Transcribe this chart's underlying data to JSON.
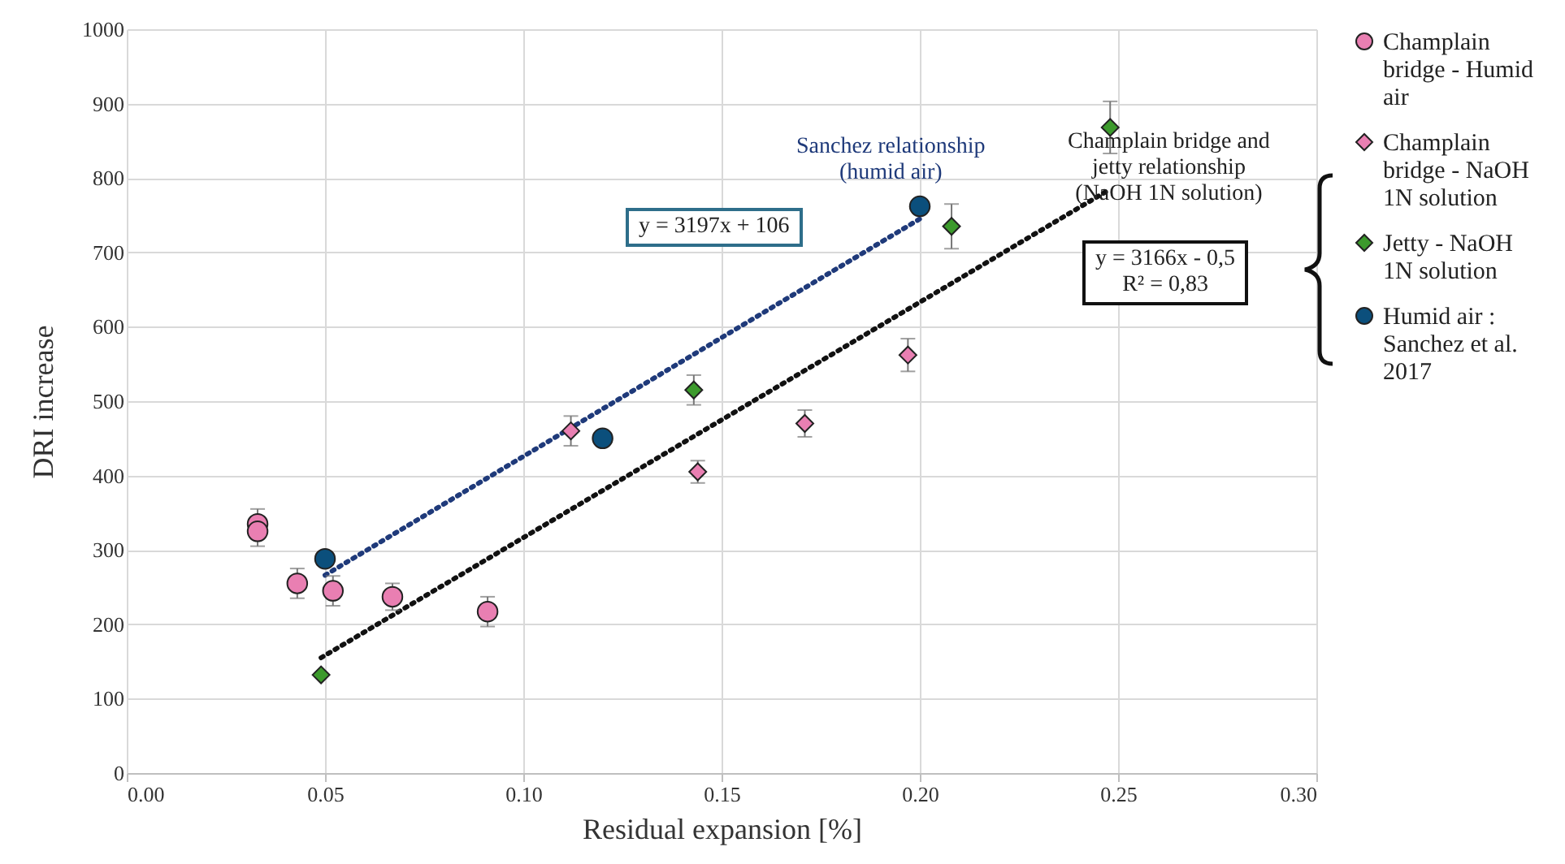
{
  "chart_data": {
    "type": "scatter",
    "xlabel": "Residual expansion [%]",
    "ylabel": "DRI increase",
    "xlim": [
      0,
      0.3
    ],
    "ylim": [
      0,
      1000
    ],
    "xticks": [
      {
        "value": 0,
        "label": "0.00"
      },
      {
        "value": 0.05,
        "label": "0.05"
      },
      {
        "value": 0.1,
        "label": "0.10"
      },
      {
        "value": 0.15,
        "label": "0.15"
      },
      {
        "value": 0.2,
        "label": "0.20"
      },
      {
        "value": 0.25,
        "label": "0.25"
      },
      {
        "value": 0.3,
        "label": "0.30"
      }
    ],
    "yticks": [
      0,
      100,
      200,
      300,
      400,
      500,
      600,
      700,
      800,
      900,
      1000
    ],
    "grid": true,
    "legend": "right",
    "annotations": [
      "y = 3197x + 106",
      "y = 3166x - 0,5",
      "R² = 0,83",
      "Sanchez relationship (humid air)",
      "Champlain bridge and jetty relationship (NaOH 1N solution)"
    ],
    "series": [
      {
        "name": "Champlain bridge - Humid air",
        "type": "scatter",
        "marker": "circle",
        "color": "#e97fb2",
        "x": [
          0.033,
          0.033,
          0.043,
          0.052,
          0.067,
          0.091
        ],
        "values": [
          335,
          325,
          255,
          245,
          237,
          217
        ],
        "errors": [
          20,
          20,
          20,
          20,
          18,
          20
        ]
      },
      {
        "name": "Champlain bridge - NaOH 1N solution",
        "type": "scatter",
        "marker": "diamond",
        "color": "#e97fb2",
        "x": [
          0.112,
          0.144,
          0.171,
          0.197
        ],
        "values": [
          460,
          405,
          470,
          562
        ],
        "errors": [
          20,
          15,
          18,
          22
        ]
      },
      {
        "name": "Jetty - NaOH 1N solution",
        "type": "scatter",
        "marker": "diamond",
        "color": "#3c9a2c",
        "x": [
          0.049,
          0.143,
          0.208,
          0.248
        ],
        "values": [
          132,
          515,
          735,
          868
        ],
        "errors": [
          null,
          20,
          30,
          35
        ]
      },
      {
        "name": "Humid air : Sanchez et al. 2017",
        "type": "scatter",
        "marker": "circle",
        "color": "#0b4f7c",
        "x": [
          0.05,
          0.12,
          0.2
        ],
        "values": [
          288,
          450,
          762
        ]
      },
      {
        "type": "line",
        "line_style": "dotted",
        "marker": "none",
        "color": "#1f3a7a",
        "x": [
          0.05,
          0.2
        ],
        "values": [
          266,
          745
        ]
      },
      {
        "type": "line",
        "line_style": "dotted",
        "marker": "none",
        "color": "#111111",
        "x": [
          0.049,
          0.248
        ],
        "values": [
          155,
          785
        ]
      }
    ]
  }
}
